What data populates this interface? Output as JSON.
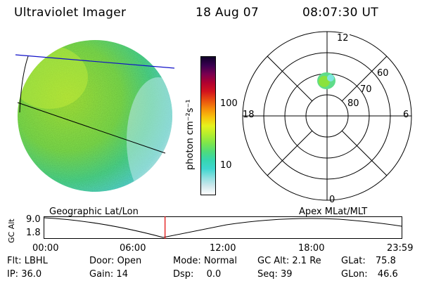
{
  "header": {
    "instrument": "Ultraviolet Imager",
    "date": "18 Aug 07",
    "time": "08:07:30 UT"
  },
  "colorbar": {
    "label": "photon cm⁻²s⁻¹",
    "ticks": [
      "100",
      "10"
    ],
    "colors": [
      "#ffffff",
      "#cfe8ec",
      "#8cdfe0",
      "#3fd6cf",
      "#36d6b0",
      "#4fdc7a",
      "#7fe64a",
      "#b4ee2e",
      "#e6f21c",
      "#f7c20c",
      "#f58a0a",
      "#e84d10",
      "#d2121e",
      "#b00030",
      "#7a0050",
      "#3a0050",
      "#10002a"
    ]
  },
  "polar_plot": {
    "mlt_labels": [
      "12",
      "18",
      "6",
      "0"
    ],
    "lat_labels": [
      "60",
      "70",
      "80"
    ]
  },
  "timeline": {
    "ylabel": "GC Alt",
    "left_title": "Geographic Lat/Lon",
    "right_title": "Apex  MLat/MLT",
    "y_max": "9.0",
    "y_min": "1.8",
    "time_ticks": [
      "00:00",
      "06:00",
      "12:00",
      "18:00",
      "23:59"
    ],
    "current_marker_hours": 8.125,
    "marker_color": "#e00000"
  },
  "status": {
    "filter_label": "Flt:",
    "filter_value": "LBHL",
    "ip_label": "IP:",
    "ip_value": "36.0",
    "door_label": "Door:",
    "door_value": "Open",
    "gain_label": "Gain:",
    "gain_value": "14",
    "mode_label": "Mode:",
    "mode_value": "Normal",
    "dsp_label": "Dsp:",
    "dsp_value": "0.0",
    "gcalt_label": "GC Alt:",
    "gcalt_value": "2.1 Re",
    "seq_label": "Seq:",
    "seq_value": "39",
    "glat_label": "GLat:",
    "glat_value": "75.8",
    "glon_label": "GLon:",
    "glon_value": "46.6"
  }
}
